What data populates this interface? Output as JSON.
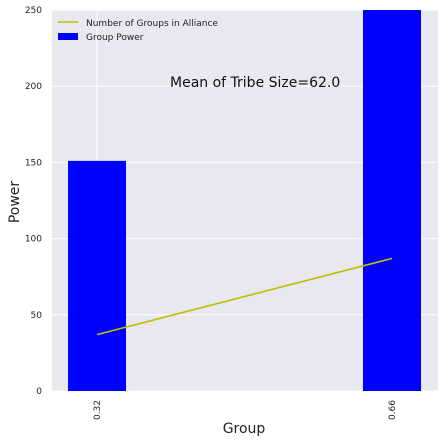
{
  "chart_data": {
    "type": "bar",
    "categories": [
      "0.32",
      "0.66"
    ],
    "series": [
      {
        "name": "Group Power",
        "kind": "bar",
        "color": "#0000ff",
        "values": [
          151,
          250
        ]
      },
      {
        "name": "Number of Groups in Alliance",
        "kind": "line",
        "color": "#bfbf00",
        "values": [
          37,
          87
        ]
      }
    ],
    "xlabel": "Group",
    "ylabel": "Power",
    "ylim": [
      0,
      250
    ],
    "yticks": [
      0,
      50,
      100,
      150,
      200,
      250
    ],
    "xticks": [
      "0.32",
      "0.66"
    ],
    "annotation": "Mean of Tribe Size=62.0",
    "grid": true,
    "legend_position": "top-left",
    "background": "#e8e8f1"
  }
}
